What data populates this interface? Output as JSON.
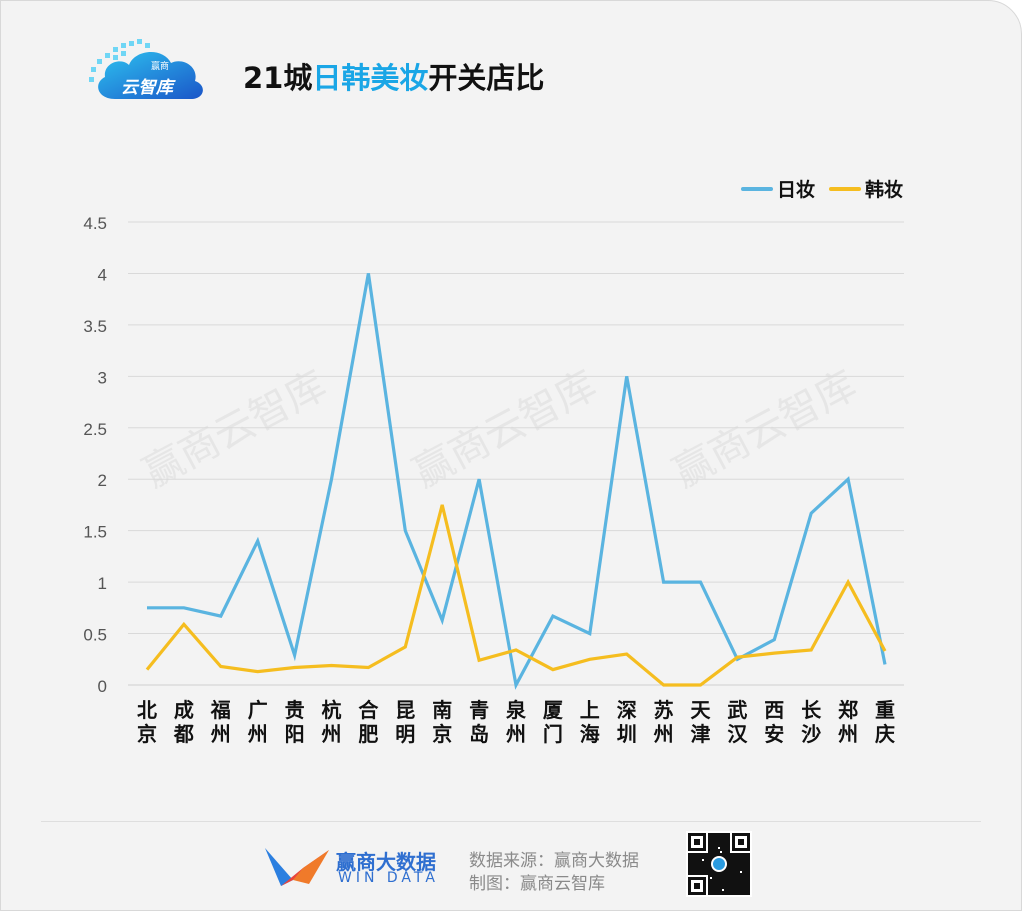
{
  "header": {
    "logo_text": "云智库",
    "logo_top_text": "赢商",
    "title_prefix": "21城",
    "title_highlight": "日韩美妆",
    "title_suffix": "开关店比"
  },
  "legend": [
    {
      "name": "日妆",
      "color": "#5ab4e0"
    },
    {
      "name": "韩妆",
      "color": "#f5bd1f"
    }
  ],
  "watermarks": [
    "赢商云智库",
    "赢商云智库",
    "赢商云智库"
  ],
  "chart_data": {
    "type": "line",
    "categories": [
      "北京",
      "成都",
      "福州",
      "广州",
      "贵阳",
      "杭州",
      "合肥",
      "昆明",
      "南京",
      "青岛",
      "泉州",
      "厦门",
      "上海",
      "深圳",
      "苏州",
      "天津",
      "武汉",
      "西安",
      "长沙",
      "郑州",
      "重庆"
    ],
    "y_ticks": [
      "0",
      "0.5",
      "1",
      "1.5",
      "2",
      "2.5",
      "3",
      "3.5",
      "4",
      "4.5"
    ],
    "ylim": [
      0,
      4.5
    ],
    "grid": true,
    "legend_position": "top-right",
    "series": [
      {
        "name": "日妆",
        "color": "#5ab4e0",
        "values": [
          0.75,
          0.75,
          0.67,
          1.4,
          0.29,
          2.0,
          4.0,
          1.5,
          0.63,
          2.0,
          0.0,
          0.67,
          0.5,
          3.0,
          1.0,
          1.0,
          0.25,
          0.44,
          1.67,
          2.0,
          0.2
        ]
      },
      {
        "name": "韩妆",
        "color": "#f5bd1f",
        "values": [
          0.15,
          0.59,
          0.18,
          0.13,
          0.17,
          0.19,
          0.17,
          0.37,
          1.75,
          0.24,
          0.34,
          0.15,
          0.25,
          0.3,
          0.0,
          0.0,
          0.27,
          0.31,
          0.34,
          1.0,
          0.33
        ]
      }
    ]
  },
  "footer": {
    "brand_name": "赢商大数据",
    "brand_sub": "WIN DATA",
    "source": "数据来源：赢商大数据",
    "made_by": "制图：赢商云智库"
  }
}
